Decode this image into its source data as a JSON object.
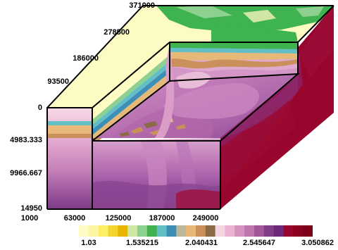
{
  "axes": {
    "depth_axis_ticks": [
      "371000",
      "278500",
      "186000",
      "93500",
      "0"
    ],
    "vertical_axis_ticks": [
      "4983.333",
      "9966.667",
      "14950"
    ],
    "horizontal_axis_ticks": [
      "1000",
      "63000",
      "125000",
      "187000",
      "249000"
    ]
  },
  "colorbar": {
    "tick_labels": [
      "1.03",
      "1.535215",
      "2.040431",
      "2.545647",
      "3.050862"
    ],
    "colors": [
      "#fdfbc4",
      "#fcf6a4",
      "#fbef6a",
      "#f4d430",
      "#e7b500",
      "#cfe6a7",
      "#8ed08f",
      "#3fb34f",
      "#63bfc6",
      "#3d8fb8",
      "#bcb79a",
      "#e6b978",
      "#c9905b",
      "#8a6b45",
      "#f4d3e3",
      "#e8b4d2",
      "#d793bf",
      "#bf75ae",
      "#a15899",
      "#823f87",
      "#6e2a78",
      "#98062d",
      "#8c0020",
      "#7c0017"
    ],
    "value_min": 1.03,
    "value_max": 3.050862
  },
  "colors": {
    "top_yellow": "#fdfbc4",
    "green": "#3fb34f",
    "light_green": "#8ed08f",
    "pink": "#f4d3e3",
    "purple": "#823f87",
    "dark_red": "#98062d"
  }
}
